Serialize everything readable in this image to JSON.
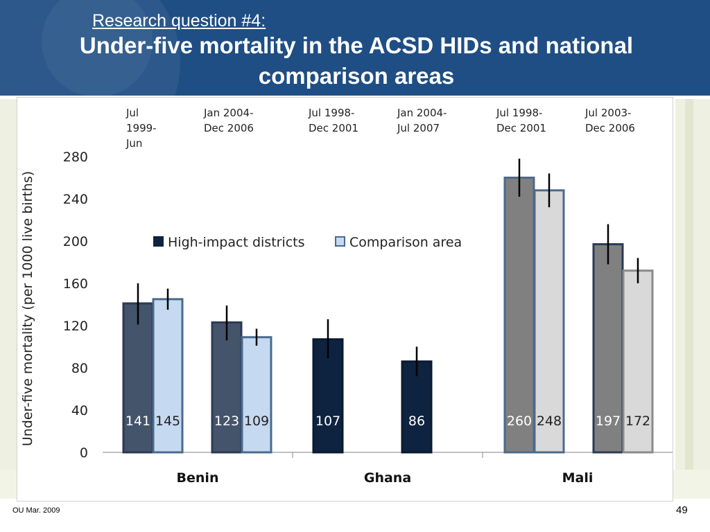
{
  "slide": {
    "subtitle": "Research question #4:",
    "title": "Under-five mortality in the ACSD HIDs and national comparison areas",
    "footer_left": "OU Mar. 2009",
    "page_number": "49"
  },
  "chart_data": {
    "type": "bar",
    "ylabel": "Under-five mortality  (per 1000 live births)",
    "ylim": [
      0,
      280
    ],
    "yticks": [
      0,
      40,
      80,
      120,
      160,
      200,
      240,
      280
    ],
    "legend": [
      {
        "name": "High-impact districts",
        "color": "#0e2340"
      },
      {
        "name": "Comparison area",
        "color": "#c5d9f1"
      }
    ],
    "legend_placement": "top-left",
    "countries": [
      {
        "name": "Benin",
        "periods": [
          {
            "label": [
              "Jul",
              "1999-",
              "Jun"
            ],
            "bars": [
              {
                "value": 141,
                "fill": "#44546a",
                "border": "#2b3a55",
                "err": [
                  121,
                  160
                ]
              },
              {
                "value": 145,
                "fill": "#c5d9f1",
                "border": "#4a6a8c",
                "err": [
                  135,
                  155
                ]
              }
            ]
          },
          {
            "label": [
              "Jan 2004-",
              "Dec 2006"
            ],
            "bars": [
              {
                "value": 123,
                "fill": "#44546a",
                "border": "#2b3a55",
                "err": [
                  106,
                  139
                ]
              },
              {
                "value": 109,
                "fill": "#c5d9f1",
                "border": "#4a6a8c",
                "err": [
                  101,
                  117
                ]
              }
            ]
          }
        ]
      },
      {
        "name": "Ghana",
        "periods": [
          {
            "label": [
              "Jul 1998-",
              "Dec 2001"
            ],
            "bars": [
              {
                "value": 107,
                "fill": "#0e2340",
                "border": "#0a1a30",
                "err": [
                  89,
                  126
                ]
              }
            ]
          },
          {
            "label": [
              "Jan 2004-",
              "Jul 2007"
            ],
            "bars": [
              {
                "value": 86,
                "fill": "#0e2340",
                "border": "#0a1a30",
                "err": [
                  72,
                  100
                ]
              }
            ]
          }
        ]
      },
      {
        "name": "Mali",
        "periods": [
          {
            "label": [
              "Jul 1998-",
              "Dec 2001"
            ],
            "bars": [
              {
                "value": 260,
                "fill": "#808080",
                "border": "#4d6a8a",
                "err": [
                  242,
                  278
                ]
              },
              {
                "value": 248,
                "fill": "#d9d9d9",
                "border": "#4d6a8a",
                "err": [
                  232,
                  264
                ]
              }
            ]
          },
          {
            "label": [
              "Jul 2003-",
              "Dec 2006"
            ],
            "bars": [
              {
                "value": 197,
                "fill": "#808080",
                "border": "#2b3a55",
                "err": [
                  178,
                  216
                ]
              },
              {
                "value": 172,
                "fill": "#d9d9d9",
                "border": "#8a8a8a",
                "err": [
                  160,
                  184
                ]
              }
            ]
          }
        ]
      }
    ]
  }
}
